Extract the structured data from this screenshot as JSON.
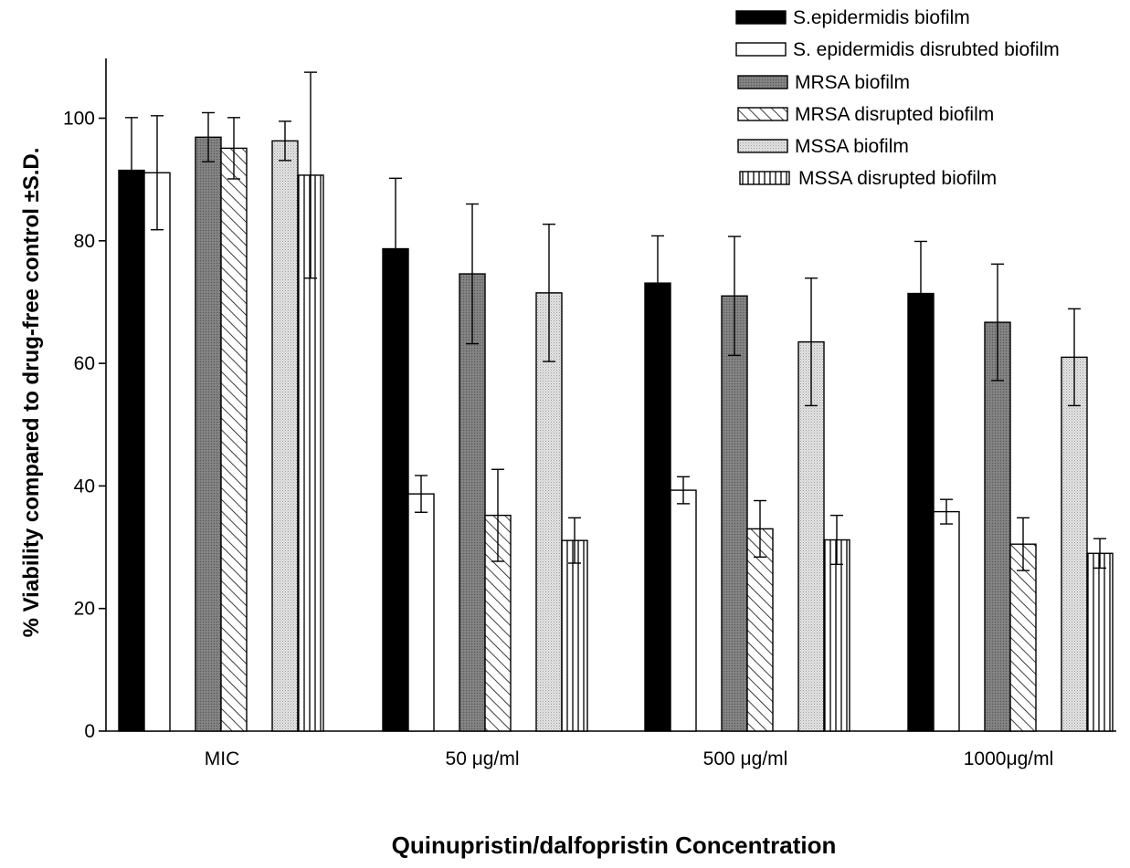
{
  "chart_data": {
    "type": "bar",
    "ylabel": "% Viability compared to drug-free control ±S.D.",
    "xlabel": "Quinupristin/dalfopristin Concentration",
    "categories": [
      "MIC",
      "50 μg/ml",
      "500 μg/ml",
      "1000μg/ml"
    ],
    "ylim": [
      0,
      110
    ],
    "yticks": [
      0,
      20,
      40,
      60,
      80,
      100
    ],
    "grid": false,
    "legend_position": "top-right",
    "series": [
      {
        "name": "S.epidermidis biofilm",
        "pattern": "solid-black",
        "values": [
          91.5,
          78.7,
          73.1,
          71.4
        ],
        "errors": [
          8.6,
          11.5,
          7.7,
          8.5
        ]
      },
      {
        "name": "S. epidermidis disrubted biofilm",
        "pattern": "white",
        "values": [
          91.1,
          38.7,
          39.3,
          35.8
        ],
        "errors": [
          9.3,
          3.0,
          2.2,
          2.0
        ]
      },
      {
        "name": "MRSA biofilm",
        "pattern": "dark-gray",
        "values": [
          96.9,
          74.6,
          71.0,
          66.7
        ],
        "errors": [
          4.0,
          11.4,
          9.7,
          9.5
        ]
      },
      {
        "name": "MRSA disrupted biofilm",
        "pattern": "diagonal-hatch",
        "values": [
          95.1,
          35.2,
          33.0,
          30.5
        ],
        "errors": [
          5.0,
          7.5,
          4.6,
          4.3
        ]
      },
      {
        "name": "MSSA biofilm",
        "pattern": "light-dotted",
        "values": [
          96.3,
          71.5,
          63.5,
          61.0
        ],
        "errors": [
          3.2,
          11.2,
          10.4,
          7.9
        ]
      },
      {
        "name": "MSSA disrupted biofilm",
        "pattern": "vertical-lines",
        "values": [
          90.7,
          31.1,
          31.2,
          29.0
        ],
        "errors": [
          16.8,
          3.7,
          4.0,
          2.4
        ]
      }
    ],
    "colors": {
      "black": "#000000",
      "dark_gray": "#7a7a7a",
      "light_gray": "#d9d9d9",
      "white": "#ffffff"
    }
  }
}
